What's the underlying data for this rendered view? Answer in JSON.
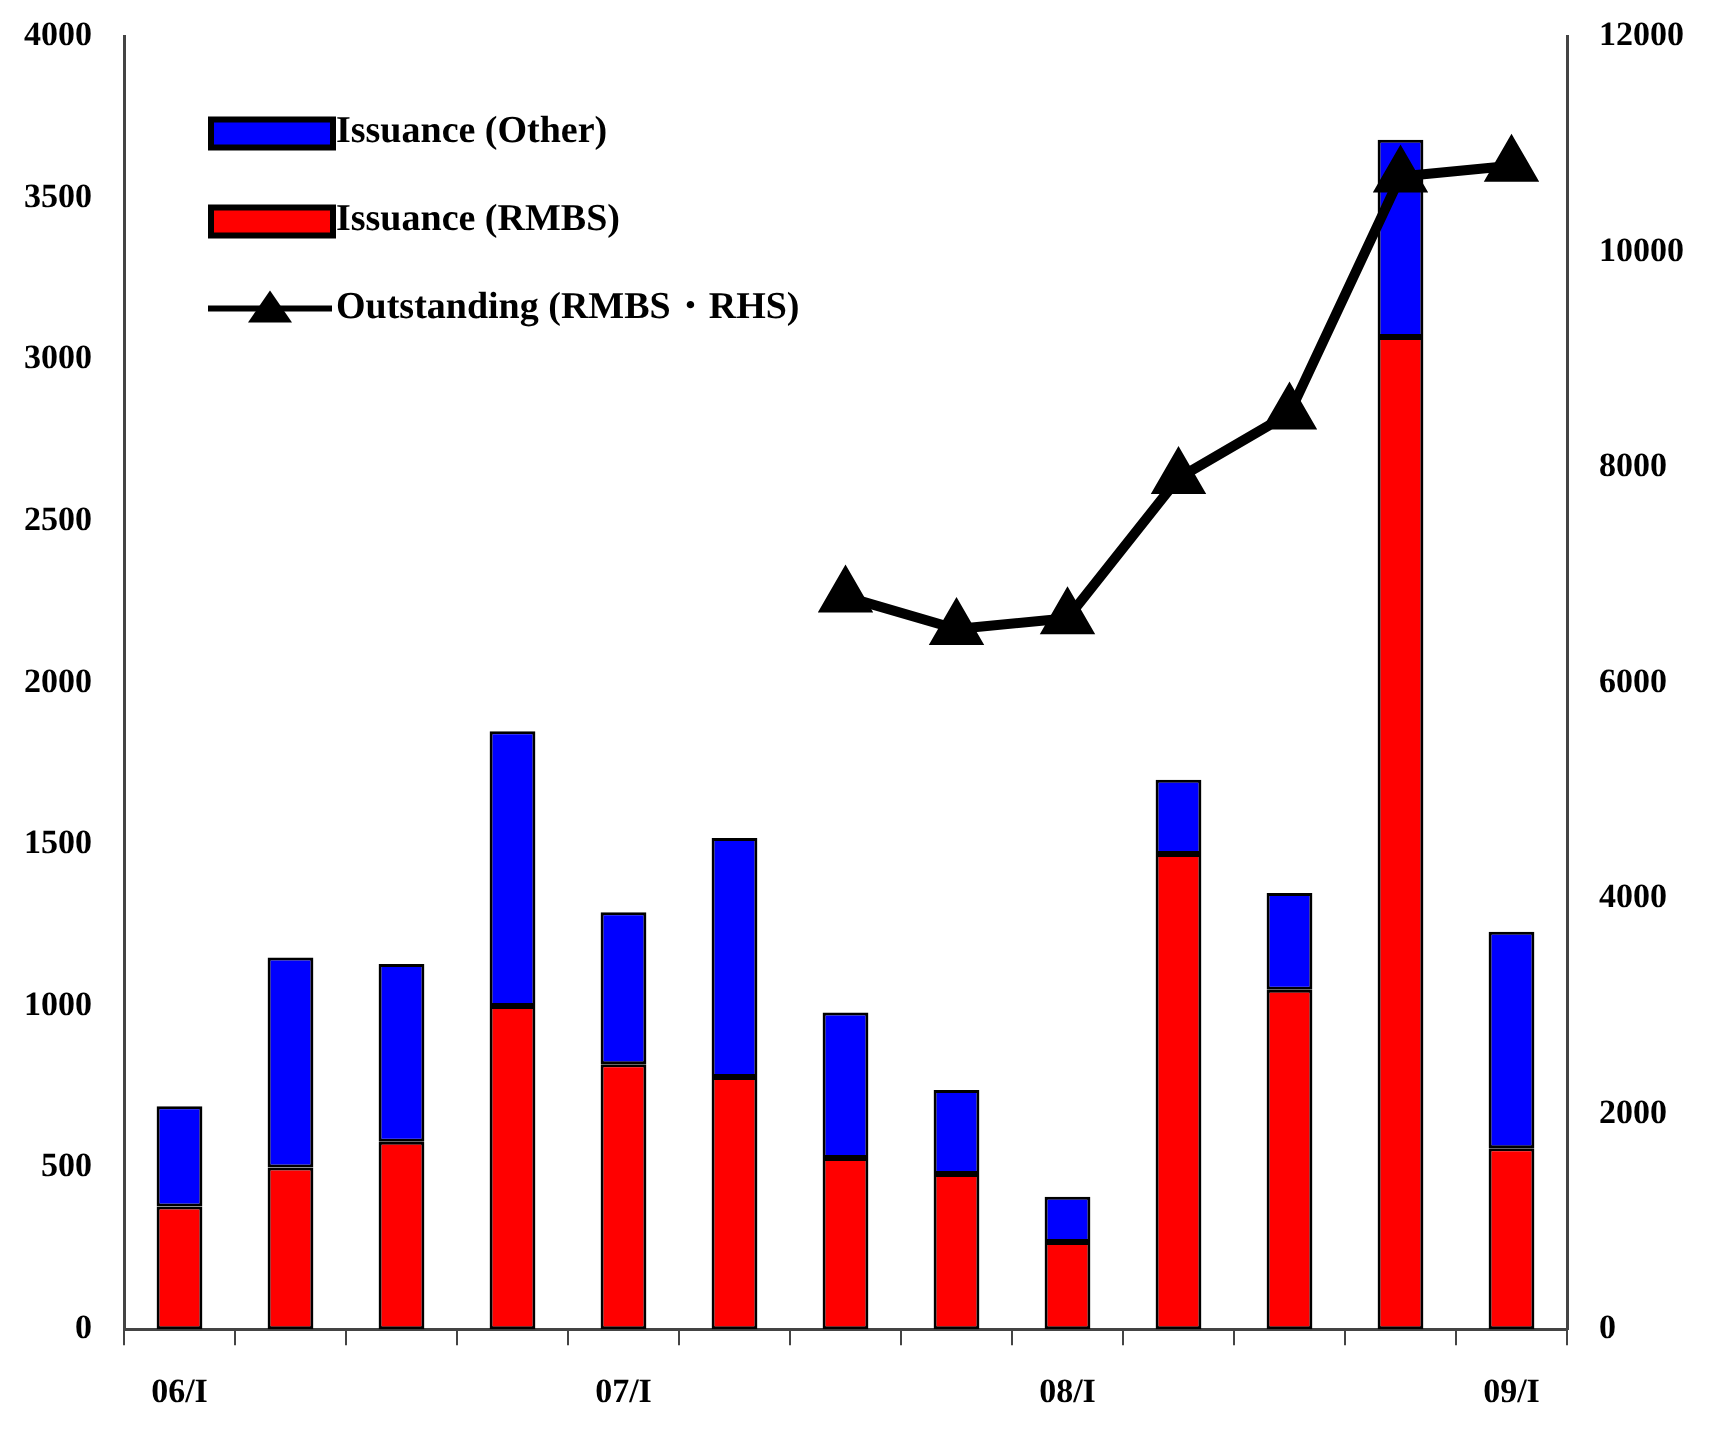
{
  "chart_data": {
    "type": "bar",
    "stacked": true,
    "categories": [
      "06/I",
      null,
      null,
      null,
      "07/I",
      null,
      null,
      null,
      "08/I",
      null,
      null,
      null,
      "09/I"
    ],
    "series": [
      {
        "name": "Issuance (RMBS)",
        "color": "#ff0000",
        "values": [
          380,
          500,
          580,
          1000,
          820,
          780,
          530,
          480,
          270,
          1470,
          1050,
          3070,
          560
        ]
      },
      {
        "name": "Issuance (Other)",
        "color": "#0000ff",
        "values": [
          310,
          650,
          550,
          850,
          470,
          740,
          450,
          260,
          140,
          230,
          300,
          610,
          670
        ]
      },
      {
        "name": "Outstanding (RMBS・RHS)",
        "type": "line",
        "axis": "y2",
        "color": "#000000",
        "marker": "triangle",
        "values": [
          null,
          null,
          null,
          null,
          null,
          null,
          6800,
          6500,
          6600,
          7900,
          8500,
          10700,
          10800
        ]
      }
    ],
    "ylim": [
      0,
      4000
    ],
    "yticks": [
      0,
      500,
      1000,
      1500,
      2000,
      2500,
      3000,
      3500,
      4000
    ],
    "y2lim": [
      0,
      12000
    ],
    "y2ticks": [
      0,
      2000,
      4000,
      6000,
      8000,
      10000,
      12000
    ],
    "grid": false,
    "legend": "top left"
  }
}
